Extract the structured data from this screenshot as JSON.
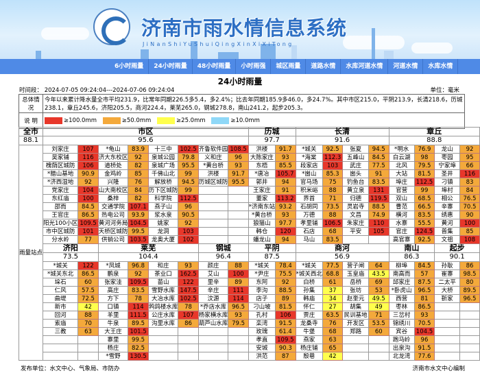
{
  "header": {
    "title": "济南市雨水情信息系统",
    "subtitle": "JiNanShiYuShuiQingXinXiXiTong",
    "logo_text": "中国水文 CHINA HYDROLOGY"
  },
  "nav": [
    "6小时雨量",
    "24小时雨量",
    "48小时雨量",
    "小时雨强",
    "城区雨量",
    "道路水情",
    "水库河道水情",
    "河道水情",
    "水库水情"
  ],
  "page_title": "24小时雨量",
  "time_range": "时间段： 2024-07-05 09:24:04---2024-07-06 09:24:04",
  "unit": "单位：毫米",
  "summary": {
    "label": "总体情况",
    "text": "今年以来累计降水量全市平均231.9，比常年同期226.5多5.4，多2.4%；比去年同期185.9多46.0，多24.7%。其中市区215.0，平阴213.9，长清218.6，历城238.1，章丘245.6，济阳205.5，商河224.4，莱芜265.0，钢城278.8，南山241.2，起步205.3。"
  },
  "legend": {
    "label": "说 明",
    "items": [
      {
        "text": "≥100.0mm",
        "color": "#e8372a",
        "min": 100
      },
      {
        "text": "≥50.0mm",
        "color": "#f4a93b",
        "min": 50
      },
      {
        "text": "≥25.0mm",
        "color": "#ffff4d",
        "min": 25
      },
      {
        "text": "≥10.0mm",
        "color": "#8fd8f8",
        "min": 10
      }
    ]
  },
  "city": {
    "label": "全市",
    "avg": "88.1",
    "side_label": "雨量站点"
  },
  "sections": [
    {
      "regions": [
        {
          "name": "市区",
          "avg": "95.6",
          "columns": [
            [
              [
                "刘家庄",
                "107"
              ],
              [
                "吴家铺",
                "116"
              ],
              [
                "槐荫区城防",
                "106"
              ],
              [
                "*腊山基地",
                "90.9"
              ],
              [
                "*济西湿地",
                "92"
              ],
              [
                "党家庄",
                "104"
              ],
              [
                "东红庙",
                "100"
              ],
              [
                "邵而",
                "84.5"
              ],
              [
                "王官庄",
                "86.5"
              ],
              [
                "阳光100小区",
                "109.5"
              ],
              [
                "市中区城防",
                "101"
              ],
              [
                "分水岭",
                "77"
              ]
            ],
            [
              [
                "*龟山",
                "83.9"
              ],
              [
                "济大东校区",
                "92"
              ],
              [
                "道桥处",
                "82"
              ],
              [
                "金鸡岭",
                "85"
              ],
              [
                "兴隆",
                "76"
              ],
              [
                "山大南校区",
                "84"
              ],
              [
                "桑梓",
                "82"
              ],
              [
                "交通学院",
                "107.1"
              ],
              [
                "热电公司",
                "93.9"
              ],
              [
                "黄河河务局",
                "104.5"
              ],
              [
                "天桥区城防",
                "99.5"
              ],
              [
                "供销公司",
                "103.5"
              ]
            ],
            [
              [
                "十三中",
                "102.5"
              ],
              [
                "泉城公园",
                "79.8"
              ],
              [
                "泉城广场",
                "95.5"
              ],
              [
                "千佛山北",
                "99"
              ],
              [
                "解放桥",
                "94.5"
              ],
              [
                "历下区城防",
                "99"
              ],
              [
                "科学院",
                "112.5"
              ],
              [
                "燕子山",
                "96"
              ],
              [
                "浆水泉",
                "90.5"
              ],
              [
                "姚家",
                "92"
              ],
              [
                "龙洞",
                "103"
              ],
              [
                "龙奥大厦",
                "102"
              ]
            ],
            [
              [
                "齐鲁软件园",
                "108.5"
              ],
              [
                "义和庄",
                "96"
              ],
              [
                "*黄台桥",
                "93"
              ],
              [
                "洪楼",
                "91.7"
              ],
              [
                "历城区城防",
                "95.5"
              ]
            ]
          ]
        },
        {
          "name": "历城",
          "avg": "97.7",
          "columns": [
            [
              [
                "洪楼",
                "91.7"
              ],
              [
                "大陈家庄",
                "93"
              ],
              [
                "东梧",
                "85.5"
              ],
              [
                "*唐冶",
                "105.7"
              ],
              [
                "郭井",
                "94"
              ],
              [
                "王家庄",
                "91"
              ],
              [
                "董家",
                "113.2"
              ],
              [
                "*济南东站",
                "93.2"
              ],
              [
                "*黄台桥",
                "93"
              ],
              [
                "狼猫山",
                "97.7"
              ],
              [
                "韩仓",
                "120"
              ],
              [
                "蟠龙山",
                "94"
              ]
            ]
          ]
        },
        {
          "name": "长清",
          "avg": "91.6",
          "columns": [
            [
              [
                "*城关",
                "92.5"
              ],
              [
                "*海棠",
                "112.3"
              ],
              [
                "段家店",
                "103"
              ],
              [
                "*崮山",
                "85.3"
              ],
              [
                "官马场",
                "75"
              ],
              [
                "积米峪",
                "88"
              ],
              [
                "界首",
                "71"
              ],
              [
                "石胡同",
                "73.5"
              ],
              [
                "万德",
                "88"
              ],
              [
                "孝里铺",
                "106.5"
              ],
              [
                "石店",
                "68"
              ],
              [
                "马山",
                "83.5"
              ]
            ],
            [
              [
                "张夏",
                "94.5"
              ],
              [
                "五峰山",
                "84.5"
              ],
              [
                "武庄",
                "77.5"
              ],
              [
                "崮头",
                "91"
              ],
              [
                "钓鱼台",
                "83.5"
              ],
              [
                "黄立泉",
                "131"
              ],
              [
                "归德",
                "119.5"
              ],
              [
                "灵岩寺",
                "88.5"
              ],
              [
                "文昌",
                "74.9"
              ],
              [
                "朱家庄",
                "110"
              ],
              [
                "平安",
                "105"
              ]
            ]
          ]
        },
        {
          "name": "章丘",
          "avg": "88.8",
          "columns": [
            [
              [
                "*明水",
                "76.9"
              ],
              [
                "白云湖",
                "98"
              ],
              [
                "北风",
                "79.5"
              ],
              [
                "大站",
                "81.5"
              ],
              [
                "埠庄",
                "112.5"
              ],
              [
                "官营",
                "99"
              ],
              [
                "双山",
                "68.5"
              ],
              [
                "曹范",
                "66.5"
              ],
              [
                "横河",
                "83.5"
              ],
              [
                "水寨",
                "55.5"
              ],
              [
                "官庄",
                "124.5"
              ],
              [
                "高官寨",
                "92.5"
              ]
            ],
            [
              [
                "龙山",
                "92"
              ],
              [
                "枣园",
                "95"
              ],
              [
                "宁家埠",
                "66"
              ],
              [
                "圣井",
                "116"
              ],
              [
                "刁镇",
                "83"
              ],
              [
                "埠村",
                "84"
              ],
              [
                "相公",
                "76.5"
              ],
              [
                "辛寨",
                "70.5"
              ],
              [
                "绣惠",
                "90"
              ],
              [
                "黄河",
                "100"
              ],
              [
                "普集",
                "85"
              ],
              [
                "文祖",
                "108"
              ]
            ]
          ]
        }
      ]
    },
    {
      "regions": [
        {
          "name": "济阳",
          "avg": "73.5",
          "columns": [
            [
              [
                "*城关",
                "122"
              ],
              [
                "*城关东北",
                "86.5"
              ],
              [
                "垛石",
                "60"
              ],
              [
                "仁风",
                "57.5"
              ],
              [
                "曲堤",
                "72.5"
              ],
              [
                "新市",
                "42"
              ],
              [
                "回河",
                "88"
              ],
              [
                "索庙",
                "70"
              ],
              [
                "三教",
                "63"
              ]
            ]
          ]
        },
        {
          "name": "莱芜",
          "avg": "104.4",
          "columns": [
            [
              [
                "*凤城",
                "96.8"
              ],
              [
                "鹏泉",
                "92"
              ],
              [
                "张家洼",
                "109.5"
              ],
              [
                "高庄",
                "83.5"
              ],
              [
                "方下",
                "78"
              ],
              [
                "口镇",
                "114"
              ],
              [
                "羊里",
                "111.5"
              ],
              [
                "牛泉",
                "89.5"
              ],
              [
                "大王庄",
                "101.5"
              ],
              [
                "寨里",
                "99.5"
              ],
              [
                "杨庄",
                "82.5"
              ],
              [
                "*雪野",
                "130.5"
              ]
            ],
            [
              [
                "和庄",
                "93"
              ],
              [
                "茶业口",
                "162.5"
              ],
              [
                "苗山",
                "122"
              ],
              [
                "雪野水库",
                "147.5"
              ],
              [
                "大冶水库",
                "102.5"
              ],
              [
                "鹁鸽楼水库",
                "78"
              ],
              [
                "公庄水库",
                "107"
              ],
              [
                "沟里水库",
                "86"
              ]
            ]
          ]
        },
        {
          "name": "钢城",
          "avg": "96.4",
          "columns": [
            [
              [
                "颜庄",
                "88"
              ],
              [
                "艾山",
                "100"
              ],
              [
                "里辛",
                "89"
              ],
              [
                "辛庄",
                "111"
              ],
              [
                "汶源",
                "114"
              ],
              [
                "*乔店水库",
                "96.5"
              ],
              [
                "杨家横水库",
                "93"
              ],
              [
                "葫芦山水库",
                "79.5"
              ]
            ]
          ]
        },
        {
          "name": "平阴",
          "avg": "87.5",
          "columns": [
            [
              [
                "*城关",
                "78.4"
              ],
              [
                "*尹庄",
                "75.5"
              ],
              [
                "东阿",
                "92"
              ],
              [
                "李沟",
                "88.5"
              ],
              [
                "店子",
                "89"
              ],
              [
                "刁山坡",
                "81.5"
              ],
              [
                "孔村",
                "106"
              ],
              [
                "栾湾",
                "91.5"
              ],
              [
                "玫瑰",
                "61.4"
              ],
              [
                "孝直",
                "109.5"
              ],
              [
                "安城",
                "90.3"
              ],
              [
                "洪范",
                "87"
              ]
            ]
          ]
        },
        {
          "name": "商河",
          "avg": "56.9",
          "columns": [
            [
              [
                "*城关",
                "77.5"
              ],
              [
                "*城关西北",
                "68.8"
              ],
              [
                "白桥",
                "61"
              ],
              [
                "孙集",
                "37"
              ],
              [
                "韩庙",
                "34"
              ],
              [
                "怀仁",
                "27"
              ],
              [
                "贾庄",
                "63.5"
              ],
              [
                "龙桑寺",
                "76"
              ],
              [
                "牛堡",
                "68"
              ],
              [
                "燕家",
                "63"
              ],
              [
                "杨庄铺",
                "65"
              ],
              [
                "殷巷",
                "42"
              ]
            ],
            [
              [
                "营子闸",
                "64"
              ],
              [
                "玉皇庙",
                "43.5"
              ],
              [
                "岳桥",
                "69"
              ],
              [
                "张坊",
                "53"
              ],
              [
                "赵奎元",
                "49.5"
              ],
              [
                "胡集",
                "49"
              ],
              [
                "民训基地",
                "71"
              ],
              [
                "开发区",
                "53.5"
              ],
              [
                "郑路",
                "60"
              ]
            ]
          ]
        },
        {
          "name": "南山",
          "avg": "86.3",
          "columns": [
            [
              [
                "柳埠",
                "84.5"
              ],
              [
                "南高而",
                "57"
              ],
              [
                "邱家庄",
                "87.5"
              ],
              [
                "*卧虎山",
                "96.5"
              ],
              [
                "西营",
                "81"
              ],
              [
                "枣林",
                "86.5"
              ],
              [
                "三岔村",
                "93"
              ],
              [
                "锦绣川",
                "70.5"
              ],
              [
                "宾谷",
                "104.5"
              ],
              [
                "跑马岭",
                "96"
              ],
              [
                "出泉沟",
                "91.5"
              ],
              [
                "北龙湾",
                "77.6"
              ]
            ]
          ]
        },
        {
          "name": "起步",
          "avg": "90.1",
          "columns": [
            [
              [
                "孙耿",
                "86"
              ],
              [
                "崔寨",
                "98.5"
              ],
              [
                "二太平",
                "80"
              ],
              [
                "大桥",
                "89.5"
              ],
              [
                "靳家",
                "96.5"
              ]
            ]
          ]
        }
      ]
    }
  ],
  "footer": {
    "publisher": "发布单位：水文中心、气象局、市防办",
    "compiler": "济南市水文中心编制"
  }
}
